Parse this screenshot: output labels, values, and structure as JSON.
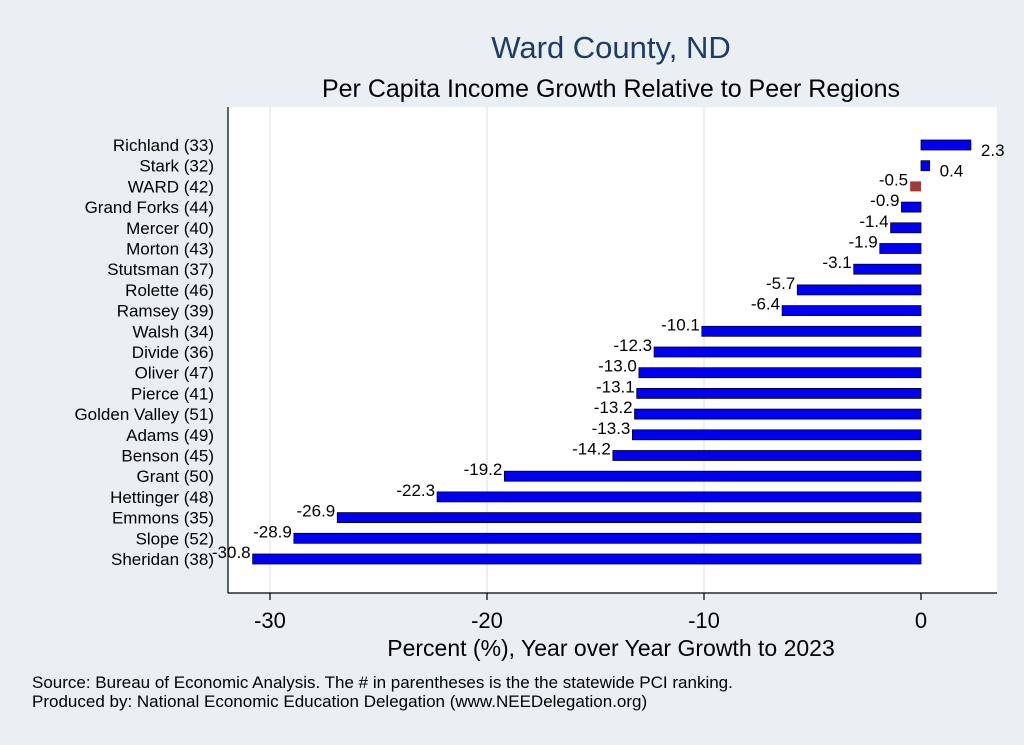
{
  "chart_data": {
    "type": "bar",
    "orientation": "horizontal",
    "title": "Ward County, ND",
    "subtitle": "Per Capita Income Growth Relative to Peer Regions",
    "xlabel": "Percent (%), Year over Year Growth to 2023",
    "ylabel": "",
    "xlim": [
      -32,
      3.5
    ],
    "xticks": [
      -30,
      -20,
      -10,
      0
    ],
    "xtick_labels": [
      "-30",
      "-20",
      "-10",
      "0"
    ],
    "grid": true,
    "highlight_category": "WARD (42)",
    "colors": {
      "bar": "#0000ee",
      "highlight": "#a33a3a",
      "background": "#e9eff2",
      "plot": "#ffffff"
    },
    "categories": [
      "Richland (33)",
      "Stark (32)",
      "WARD (42)",
      "Grand Forks (44)",
      "Mercer (40)",
      "Morton (43)",
      "Stutsman (37)",
      "Rolette (46)",
      "Ramsey (39)",
      "Walsh (34)",
      "Divide (36)",
      "Oliver (47)",
      "Pierce (41)",
      "Golden Valley (51)",
      "Adams (49)",
      "Benson (45)",
      "Grant (50)",
      "Hettinger (48)",
      "Emmons (35)",
      "Slope (52)",
      "Sheridan (38)"
    ],
    "values": [
      2.3,
      0.4,
      -0.5,
      -0.9,
      -1.4,
      -1.9,
      -3.1,
      -5.7,
      -6.4,
      -10.1,
      -12.3,
      -13.0,
      -13.1,
      -13.2,
      -13.3,
      -14.2,
      -19.2,
      -22.3,
      -26.9,
      -28.9,
      -30.8
    ],
    "value_labels": [
      "2.3",
      "0.4",
      "-0.5",
      "-0.9",
      "-1.4",
      "-1.9",
      "-3.1",
      "-5.7",
      "-6.4",
      "-10.1",
      "-12.3",
      "-13.0",
      "-13.1",
      "-13.2",
      "-13.3",
      "-14.2",
      "-19.2",
      "-22.3",
      "-26.9",
      "-28.9",
      "-30.8"
    ]
  },
  "notes": {
    "source": "Source: Bureau of Economic Analysis. The # in parentheses is the the statewide PCI ranking.",
    "produced_by": "Produced by: National Economic Education Delegation (www.NEEDelegation.org)"
  }
}
